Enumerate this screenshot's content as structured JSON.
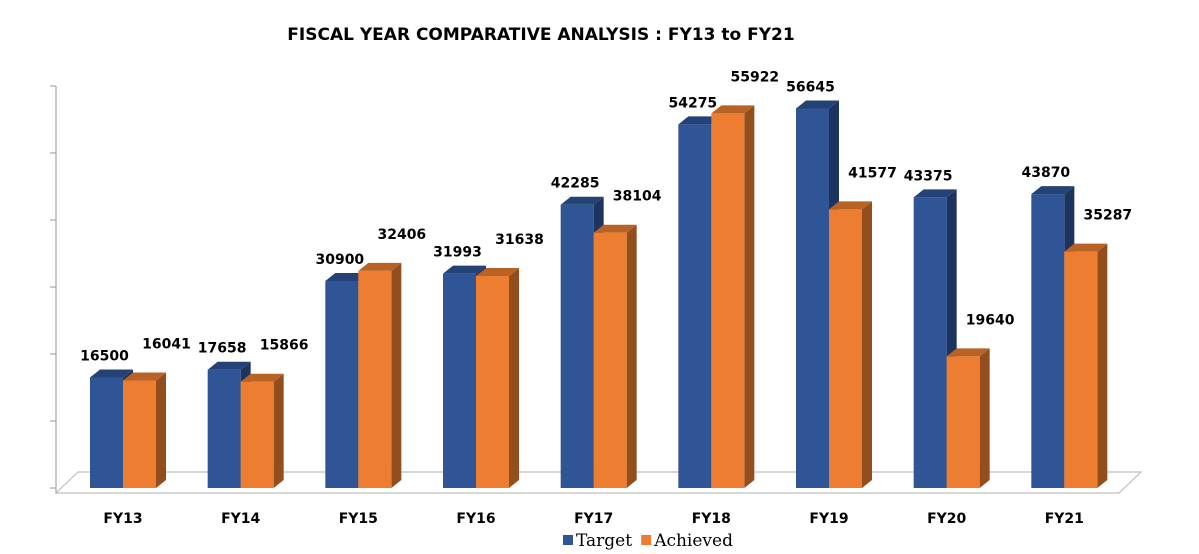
{
  "chart_data": {
    "type": "bar",
    "title": "FISCAL YEAR COMPARATIVE ANALYSIS : FY13 to FY21",
    "xlabel": "",
    "ylabel": "",
    "categories": [
      "FY13",
      "FY14",
      "FY15",
      "FY16",
      "FY17",
      "FY18",
      "FY19",
      "FY20",
      "FY21"
    ],
    "series": [
      {
        "name": "Target",
        "color": "#2F5597",
        "values": [
          16500,
          17658,
          30900,
          31993,
          42285,
          54275,
          56645,
          43375,
          43870
        ]
      },
      {
        "name": "Achieved",
        "color": "#ED7D31",
        "values": [
          16041,
          15866,
          32406,
          31638,
          38104,
          55922,
          41577,
          19640,
          35287
        ]
      }
    ],
    "ylim": [
      0,
      60000
    ],
    "y_axis_tick_labels_shown": false,
    "grid": false,
    "legend_position": "bottom",
    "style": "3d-clustered-column"
  }
}
